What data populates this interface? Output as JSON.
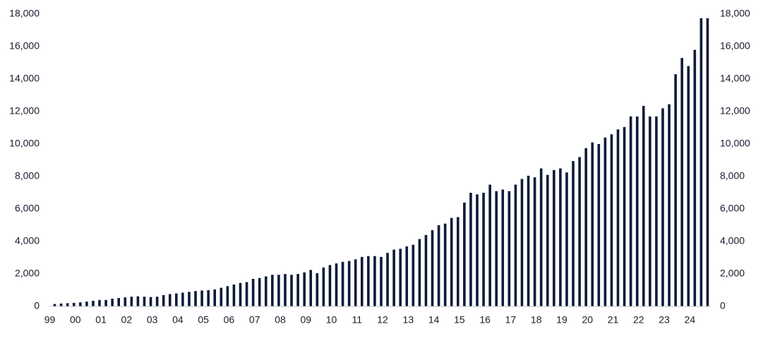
{
  "chart_data": {
    "type": "bar",
    "color": "#0c1a3a",
    "categories": [
      "99",
      null,
      null,
      null,
      "00",
      null,
      null,
      null,
      "01",
      null,
      null,
      null,
      "02",
      null,
      null,
      null,
      "03",
      null,
      null,
      null,
      "04",
      null,
      null,
      null,
      "05",
      null,
      null,
      null,
      "06",
      null,
      null,
      null,
      "07",
      null,
      null,
      null,
      "08",
      null,
      null,
      null,
      "09",
      null,
      null,
      null,
      "10",
      null,
      null,
      null,
      "11",
      null,
      null,
      null,
      "12",
      null,
      null,
      null,
      "13",
      null,
      null,
      null,
      "14",
      null,
      null,
      null,
      "15",
      null,
      null,
      null,
      "16",
      null,
      null,
      null,
      "17",
      null,
      null,
      null,
      "18",
      null,
      null,
      null,
      "19",
      null,
      null,
      null,
      "20",
      null,
      null,
      null,
      "21",
      null,
      null,
      null,
      "22",
      null,
      null,
      null,
      "23",
      null,
      null,
      null,
      "24",
      null,
      null
    ],
    "values": [
      150,
      180,
      200,
      220,
      250,
      300,
      350,
      400,
      400,
      480,
      520,
      560,
      600,
      620,
      600,
      580,
      600,
      700,
      760,
      800,
      850,
      900,
      950,
      980,
      1000,
      1050,
      1150,
      1250,
      1350,
      1450,
      1500,
      1700,
      1750,
      1850,
      1950,
      1950,
      2000,
      1950,
      2000,
      2100,
      2250,
      2050,
      2400,
      2550,
      2650,
      2750,
      2800,
      2900,
      3050,
      3100,
      3100,
      3050,
      3300,
      3500,
      3550,
      3700,
      3800,
      4150,
      4400,
      4700,
      5000,
      5100,
      5450,
      5500,
      6400,
      7000,
      6900,
      7000,
      7500,
      7100,
      7200,
      7100,
      7500,
      7850,
      8050,
      7950,
      8500,
      8100,
      8400,
      8500,
      8250,
      8950,
      9200,
      9750,
      10100,
      10000,
      10400,
      10600,
      10900,
      11050,
      11700,
      11700,
      12350,
      11700,
      11700,
      12200,
      12450,
      14300,
      15300,
      14800,
      15800,
      17750,
      17750
    ],
    "ylim": [
      0,
      18000
    ],
    "yticks": [
      0,
      {
        "value": 2000,
        "label": "2,000"
      },
      {
        "value": 4000,
        "label": "4,000"
      },
      {
        "value": 6000,
        "label": "6,000"
      },
      {
        "value": 8000,
        "label": "8,000"
      },
      {
        "value": 10000,
        "label": "10,000"
      },
      {
        "value": 12000,
        "label": "12,000"
      },
      {
        "value": 14000,
        "label": "14,000"
      },
      {
        "value": 16000,
        "label": "16,000"
      },
      {
        "value": 18000,
        "label": "18,000"
      }
    ]
  }
}
